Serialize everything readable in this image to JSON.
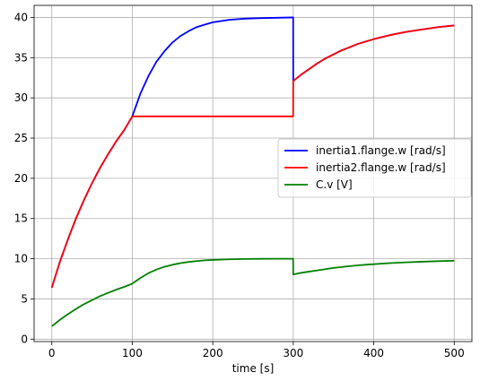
{
  "chart_data": {
    "type": "line",
    "title": "",
    "xlabel": "time [s]",
    "ylabel": "",
    "xlim": [
      -22,
      522
    ],
    "ylim": [
      -0.3,
      41.5
    ],
    "xticks": [
      0,
      100,
      200,
      300,
      400,
      500
    ],
    "yticks": [
      0,
      5,
      10,
      15,
      20,
      25,
      30,
      35,
      40
    ],
    "grid": true,
    "legend_position": "center-right",
    "series": [
      {
        "name": "inertia1.flange.w [rad/s]",
        "color": "#0000ff",
        "x": [
          0,
          10,
          20,
          30,
          40,
          50,
          60,
          70,
          80,
          90,
          100,
          110,
          120,
          130,
          140,
          150,
          160,
          170,
          180,
          190,
          200,
          220,
          240,
          260,
          280,
          299.9,
          300,
          310,
          320,
          330,
          340,
          350,
          360,
          370,
          380,
          390,
          400,
          420,
          440,
          460,
          480,
          500
        ],
        "values": [
          6.4,
          9.6,
          12.4,
          15.0,
          17.3,
          19.4,
          21.3,
          23.0,
          24.6,
          26.0,
          27.7,
          30.5,
          32.7,
          34.5,
          35.8,
          36.9,
          37.7,
          38.3,
          38.8,
          39.1,
          39.4,
          39.7,
          39.85,
          39.92,
          39.96,
          40.0,
          32.1,
          32.9,
          33.6,
          34.3,
          34.9,
          35.4,
          35.9,
          36.3,
          36.7,
          37.0,
          37.3,
          37.8,
          38.2,
          38.5,
          38.8,
          39.0
        ]
      },
      {
        "name": "inertia2.flange.w [rad/s]",
        "color": "#ff0000",
        "x": [
          0,
          10,
          20,
          30,
          40,
          50,
          60,
          70,
          80,
          90,
          100,
          200,
          299.9,
          300,
          310,
          320,
          330,
          340,
          350,
          360,
          370,
          380,
          390,
          400,
          420,
          440,
          460,
          480,
          500
        ],
        "values": [
          6.4,
          9.6,
          12.4,
          15.0,
          17.3,
          19.4,
          21.3,
          23.0,
          24.6,
          26.0,
          27.7,
          27.7,
          27.7,
          32.1,
          32.9,
          33.6,
          34.3,
          34.9,
          35.4,
          35.9,
          36.3,
          36.7,
          37.0,
          37.3,
          37.8,
          38.2,
          38.5,
          38.8,
          39.0
        ]
      },
      {
        "name": "C.v [V]",
        "color": "#008000",
        "x": [
          0,
          10,
          20,
          30,
          40,
          50,
          60,
          70,
          80,
          90,
          100,
          110,
          120,
          130,
          140,
          150,
          160,
          170,
          180,
          190,
          200,
          220,
          240,
          260,
          280,
          299.9,
          300,
          310,
          320,
          330,
          340,
          350,
          360,
          370,
          380,
          390,
          400,
          420,
          440,
          460,
          480,
          500
        ],
        "values": [
          1.6,
          2.4,
          3.1,
          3.75,
          4.35,
          4.85,
          5.35,
          5.75,
          6.15,
          6.5,
          6.9,
          7.6,
          8.2,
          8.65,
          9.0,
          9.25,
          9.45,
          9.6,
          9.7,
          9.8,
          9.85,
          9.93,
          9.97,
          9.99,
          10.0,
          10.0,
          8.05,
          8.25,
          8.4,
          8.55,
          8.7,
          8.85,
          8.97,
          9.08,
          9.17,
          9.25,
          9.32,
          9.45,
          9.55,
          9.63,
          9.7,
          9.75
        ]
      }
    ]
  }
}
